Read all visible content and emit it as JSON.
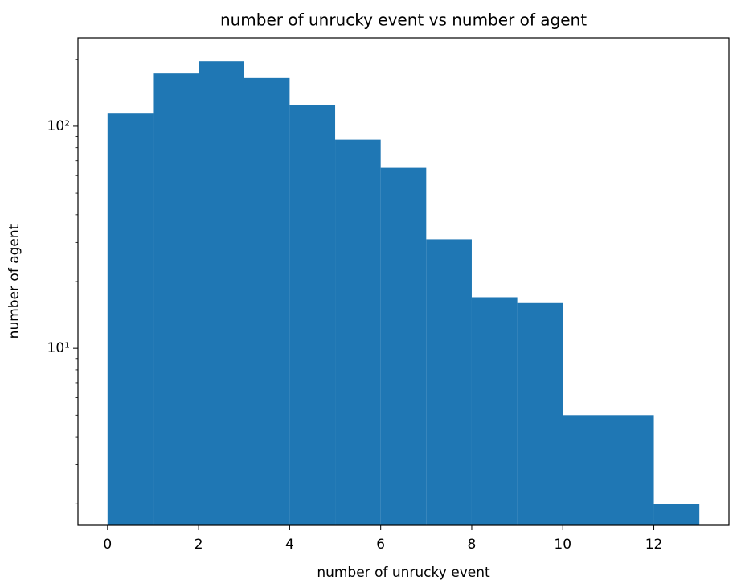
{
  "chart_data": {
    "type": "histogram",
    "title": "number of unrucky event vs number of agent",
    "x_label": "number of unrucky event",
    "y_label": "number of agent",
    "bins": [
      0,
      1,
      2,
      3,
      4,
      5,
      6,
      7,
      8,
      9,
      10,
      11,
      12,
      13
    ],
    "values": [
      114,
      173,
      196,
      165,
      125,
      87,
      65,
      31,
      17,
      16,
      5,
      5,
      2
    ],
    "color": "#1f77b4",
    "xlim": [
      -0.65,
      13.65
    ],
    "xticks": [
      0,
      2,
      4,
      6,
      8,
      10,
      12
    ],
    "ylim": [
      1.6,
      250
    ],
    "y_scale": "log",
    "yticks": [
      {
        "value": 10,
        "label": "10¹"
      },
      {
        "value": 100,
        "label": "10²"
      }
    ],
    "minor_yticks": [
      2,
      3,
      4,
      5,
      6,
      7,
      8,
      9,
      20,
      30,
      40,
      50,
      60,
      70,
      80,
      90,
      200
    ],
    "grid": false
  }
}
